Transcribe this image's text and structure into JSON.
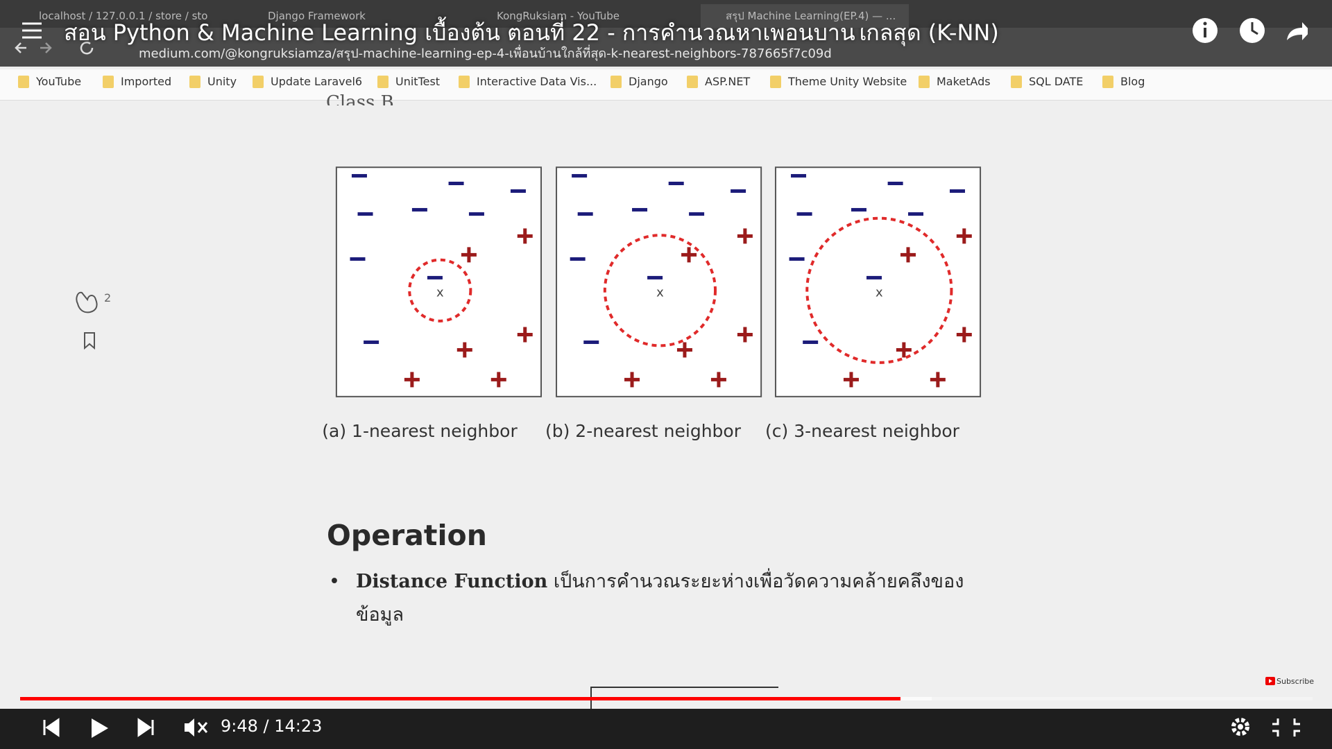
{
  "video": {
    "title": "สอน Python & Machine Learning เบื้องต้น ตอนที่ 22 - การคำนวณหาเพื่อนบ้านใกล้สุด (K-NN)",
    "time": "9:48 / 14:23",
    "subscribe": "Subscribe"
  },
  "browser": {
    "tabs": [
      "localhost / 127.0.0.1 / store / sto",
      "Django Framework",
      "KongRuksiam - YouTube",
      "สรุป Machine Learning(EP.4) — ..."
    ],
    "url": "medium.com/@kongruksiamza/สรุป-machine-learning-ep-4-เพื่อนบ้านใกล้ที่สุด-k-nearest-neighbors-787665f7c09d",
    "bookmarks": [
      "YouTube",
      "Imported",
      "Unity",
      "Update Laravel6",
      "UnitTest",
      "Interactive Data Vis...",
      "Django",
      "ASP.NET",
      "Theme Unity Website",
      "MaketAds",
      "SQL DATE",
      "Blog"
    ]
  },
  "article": {
    "partial_heading": "Class B",
    "claps": "2",
    "figures": [
      {
        "caption": "(a) 1-nearest neighbor",
        "query": "x"
      },
      {
        "caption": "(b) 2-nearest neighbor",
        "query": "x"
      },
      {
        "caption": "(c) 3-nearest neighbor",
        "query": "x"
      }
    ],
    "heading": "Operation",
    "bullet": {
      "term": "Distance Function",
      "lines": [
        "เป็นการคำนวณระยะห่างเพื่อวัดความคล้ายคลึงของ",
        "ข้อมูล"
      ]
    }
  }
}
